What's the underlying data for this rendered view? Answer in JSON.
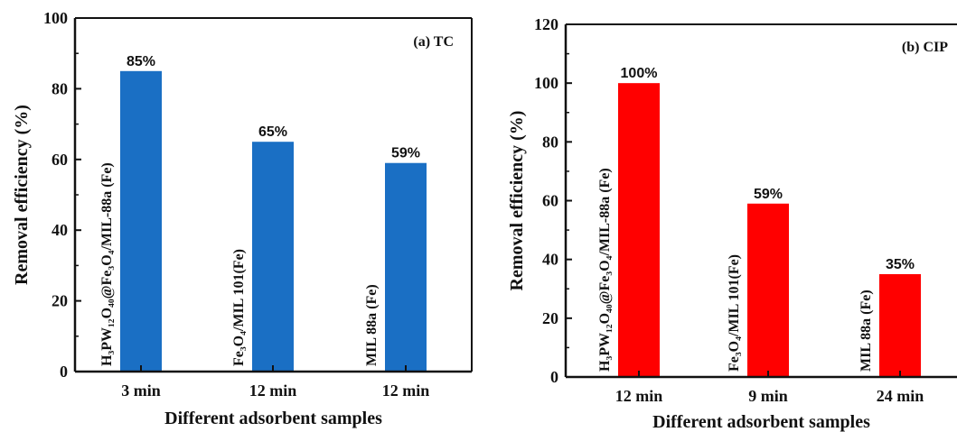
{
  "chart_data": [
    {
      "type": "bar",
      "title": "(a) TC",
      "xlabel": "Different adsorbent samples",
      "ylabel": "Removal efficiency (%)",
      "ylim": [
        0,
        100
      ],
      "yticks": [
        0,
        20,
        40,
        60,
        80,
        100
      ],
      "color": "#1a6fc4",
      "categories": [
        "3 min",
        "12 min",
        "12 min"
      ],
      "samples": [
        "H₃PW₁₂O₄₀@Fe₃O₄/MIL-88a (Fe)",
        "Fe₃O₄/MIL 101(Fe)",
        "MIL 88a (Fe)"
      ],
      "values": [
        85,
        65,
        59
      ],
      "value_labels": [
        "85%",
        "65%",
        "59%"
      ],
      "grid": false
    },
    {
      "type": "bar",
      "title": "(b) CIP",
      "xlabel": "Different adsorbent samples",
      "ylabel": "Removal efficiency (%)",
      "ylim": [
        0,
        120
      ],
      "yticks": [
        0,
        20,
        40,
        60,
        80,
        100,
        120
      ],
      "color": "#ff0000",
      "categories": [
        "12 min",
        "9 min",
        "24 min"
      ],
      "samples": [
        "H₃PW₁₂O₄₀@Fe₃O₄/MIL-88a (Fe)",
        "Fe₃O₄/MIL 101(Fe)",
        "MIL 88a (Fe)"
      ],
      "values": [
        100,
        59,
        35
      ],
      "value_labels": [
        "100%",
        "59%",
        "35%"
      ],
      "grid": false
    }
  ]
}
